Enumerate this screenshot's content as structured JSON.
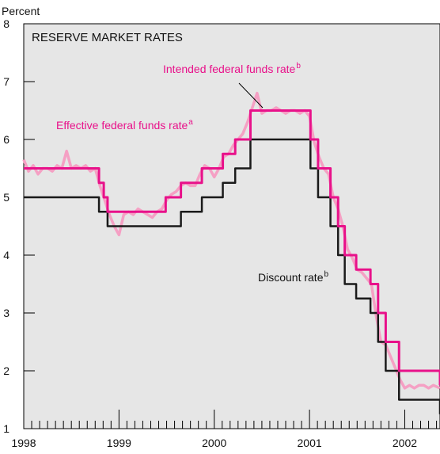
{
  "chart_data": {
    "type": "line",
    "title": "RESERVE MARKET RATES",
    "ylabel": "Percent",
    "xlabel": "",
    "ylim": [
      1,
      8
    ],
    "xlim": [
      1998,
      2002.37
    ],
    "y_ticks": [
      "1",
      "2",
      "3",
      "4",
      "5",
      "6",
      "7",
      "8"
    ],
    "x_tick_labels": [
      "1998",
      "1999",
      "2000",
      "2001",
      "2002"
    ],
    "grid": false,
    "colors": {
      "effective": "#f5a0c4",
      "intended": "#e8118a",
      "discount": "#1a1a1a",
      "title_box_bg": "#e6e6e6",
      "plot_bg": "#e6e6e6"
    },
    "series": [
      {
        "name": "Intended federal funds rate",
        "superscript": "b",
        "style": "step",
        "x": [
          1998.0,
          1998.79,
          1998.84,
          1998.88,
          1999.49,
          1999.65,
          1999.87,
          2000.09,
          2000.22,
          2000.38,
          2001.01,
          2001.09,
          2001.22,
          2001.3,
          2001.37,
          2001.49,
          2001.64,
          2001.72,
          2001.8,
          2001.94,
          2002.37
        ],
        "values": [
          5.5,
          5.25,
          5.0,
          4.75,
          5.0,
          5.25,
          5.5,
          5.75,
          6.0,
          6.5,
          6.0,
          5.5,
          5.0,
          4.5,
          4.0,
          3.75,
          3.5,
          3.0,
          2.5,
          2.0,
          1.75
        ]
      },
      {
        "name": "Discount rate",
        "superscript": "b",
        "style": "step",
        "x": [
          1998.0,
          1998.79,
          1998.88,
          1999.65,
          1999.87,
          2000.09,
          2000.22,
          2000.38,
          2001.01,
          2001.09,
          2001.22,
          2001.3,
          2001.37,
          2001.49,
          2001.64,
          2001.72,
          2001.8,
          2001.94,
          2002.37
        ],
        "values": [
          5.0,
          4.75,
          4.5,
          4.75,
          5.0,
          5.25,
          5.5,
          6.0,
          5.5,
          5.0,
          4.5,
          4.0,
          3.5,
          3.25,
          3.0,
          2.5,
          2.0,
          1.5,
          1.25
        ]
      },
      {
        "name": "Effective federal funds rate",
        "superscript": "a",
        "style": "noisy",
        "x": [
          1998.0,
          1998.05,
          1998.1,
          1998.15,
          1998.2,
          1998.25,
          1998.3,
          1998.35,
          1998.4,
          1998.45,
          1998.5,
          1998.55,
          1998.6,
          1998.65,
          1998.7,
          1998.75,
          1998.8,
          1998.85,
          1998.9,
          1998.95,
          1999.0,
          1999.05,
          1999.1,
          1999.15,
          1999.2,
          1999.25,
          1999.3,
          1999.35,
          1999.4,
          1999.45,
          1999.5,
          1999.55,
          1999.6,
          1999.65,
          1999.7,
          1999.75,
          1999.8,
          1999.85,
          1999.9,
          1999.95,
          2000.0,
          2000.05,
          2000.1,
          2000.15,
          2000.2,
          2000.25,
          2000.3,
          2000.35,
          2000.4,
          2000.45,
          2000.5,
          2000.55,
          2000.6,
          2000.65,
          2000.7,
          2000.75,
          2000.8,
          2000.85,
          2000.9,
          2000.95,
          2001.0,
          2001.05,
          2001.1,
          2001.15,
          2001.2,
          2001.25,
          2001.3,
          2001.35,
          2001.4,
          2001.45,
          2001.5,
          2001.55,
          2001.6,
          2001.65,
          2001.7,
          2001.75,
          2001.8,
          2001.85,
          2001.9,
          2001.95,
          2002.0,
          2002.05,
          2002.1,
          2002.15,
          2002.2,
          2002.25,
          2002.3,
          2002.37
        ],
        "values": [
          5.65,
          5.45,
          5.55,
          5.4,
          5.5,
          5.5,
          5.45,
          5.55,
          5.5,
          5.8,
          5.5,
          5.55,
          5.5,
          5.55,
          5.45,
          5.5,
          5.2,
          4.95,
          4.7,
          4.5,
          4.35,
          4.7,
          4.75,
          4.7,
          4.8,
          4.75,
          4.7,
          4.65,
          4.75,
          4.8,
          4.95,
          5.05,
          5.1,
          5.2,
          5.25,
          5.2,
          5.2,
          5.4,
          5.55,
          5.5,
          5.35,
          5.5,
          5.7,
          5.75,
          5.9,
          6.0,
          6.1,
          6.3,
          6.55,
          6.8,
          6.45,
          6.5,
          6.5,
          6.55,
          6.5,
          6.45,
          6.5,
          6.5,
          6.45,
          6.5,
          6.4,
          5.95,
          5.7,
          5.5,
          5.4,
          5.0,
          4.8,
          4.5,
          4.1,
          3.95,
          3.75,
          3.7,
          3.6,
          3.5,
          2.95,
          2.5,
          2.45,
          2.25,
          2.05,
          1.85,
          1.7,
          1.75,
          1.7,
          1.75,
          1.75,
          1.7,
          1.75,
          1.7
        ]
      }
    ],
    "annotations": [
      {
        "text": "Intended federal funds rate",
        "superscript": "b"
      },
      {
        "text": "Effective federal funds rate",
        "superscript": "a"
      },
      {
        "text": "Discount rate",
        "superscript": "b"
      }
    ]
  }
}
